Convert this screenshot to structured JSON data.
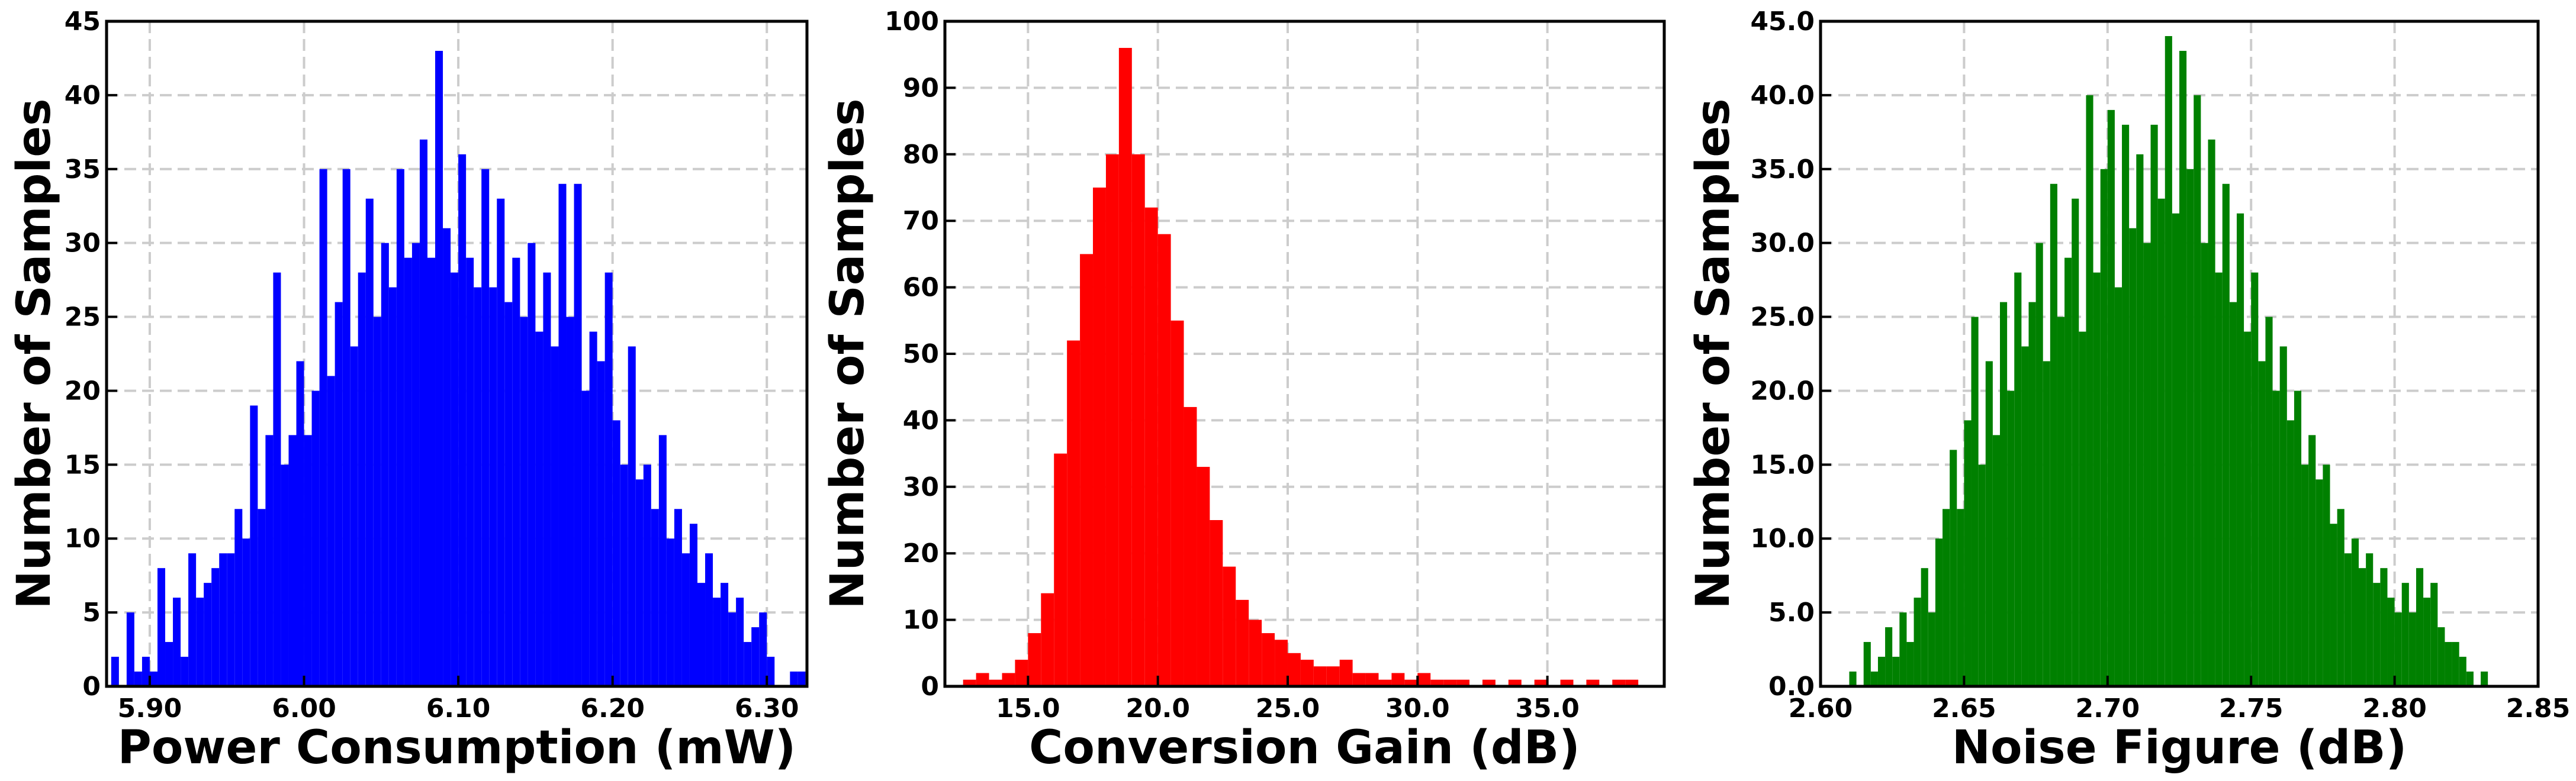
{
  "chart_data": [
    {
      "type": "histogram",
      "xlabel": "Power Consumption (mW)",
      "ylabel": "Number of Samples",
      "color": "#0000ff",
      "grid": true,
      "xlim": [
        5.872,
        6.326
      ],
      "ylim": [
        0,
        45
      ],
      "xticks": [
        {
          "value": 5.9,
          "label": "5.90"
        },
        {
          "value": 6.0,
          "label": "6.00"
        },
        {
          "value": 6.1,
          "label": "6.10"
        },
        {
          "value": 6.2,
          "label": "6.20"
        },
        {
          "value": 6.3,
          "label": "6.30"
        }
      ],
      "yticks": [
        0,
        5,
        10,
        15,
        20,
        25,
        30,
        35,
        40,
        45
      ],
      "bins": [
        5.875,
        5.88,
        5.885,
        5.89,
        5.895,
        5.9,
        5.905,
        5.91,
        5.915,
        5.92,
        5.925,
        5.93,
        5.935,
        5.94,
        5.945,
        5.95,
        5.955,
        5.96,
        5.965,
        5.97,
        5.975,
        5.98,
        5.985,
        5.99,
        5.995,
        6.0,
        6.005,
        6.01,
        6.015,
        6.02,
        6.025,
        6.03,
        6.035,
        6.04,
        6.045,
        6.05,
        6.055,
        6.06,
        6.065,
        6.07,
        6.075,
        6.08,
        6.085,
        6.09,
        6.095,
        6.1,
        6.105,
        6.11,
        6.115,
        6.12,
        6.125,
        6.13,
        6.135,
        6.14,
        6.145,
        6.15,
        6.155,
        6.16,
        6.165,
        6.17,
        6.175,
        6.18,
        6.185,
        6.19,
        6.195,
        6.2,
        6.205,
        6.21,
        6.215,
        6.22,
        6.225,
        6.23,
        6.235,
        6.24,
        6.245,
        6.25,
        6.255,
        6.26,
        6.265,
        6.27,
        6.275,
        6.28,
        6.285,
        6.29,
        6.295,
        6.3,
        6.305,
        6.31,
        6.315,
        6.32,
        6.325
      ],
      "values": [
        2,
        0,
        5,
        1,
        2,
        1,
        8,
        3,
        6,
        2,
        9,
        6,
        7,
        8,
        9,
        9,
        12,
        10,
        19,
        12,
        17,
        28,
        15,
        17,
        22,
        17,
        20,
        35,
        21,
        26,
        35,
        23,
        28,
        33,
        25,
        30,
        27,
        35,
        29,
        30,
        37,
        29,
        43,
        31,
        28,
        36,
        29,
        27,
        35,
        27,
        33,
        26,
        29,
        25,
        30,
        24,
        28,
        23,
        34,
        25,
        34,
        20,
        24,
        22,
        28,
        18,
        15,
        23,
        14,
        15,
        12,
        17,
        10,
        12,
        9,
        11,
        7,
        9,
        6,
        7,
        5,
        6,
        3,
        4,
        5,
        2,
        0,
        0,
        1,
        1
      ]
    },
    {
      "type": "histogram",
      "xlabel": "Conversion Gain (dB)",
      "ylabel": "Number of Samples",
      "color": "#ff0000",
      "grid": true,
      "xlim": [
        11.8,
        39.5
      ],
      "ylim": [
        0,
        100
      ],
      "xticks": [
        {
          "value": 15,
          "label": "15.0"
        },
        {
          "value": 20,
          "label": "20.0"
        },
        {
          "value": 25,
          "label": "25.0"
        },
        {
          "value": 30,
          "label": "30.0"
        },
        {
          "value": 35,
          "label": "35.0"
        }
      ],
      "yticks": [
        0,
        10,
        20,
        30,
        40,
        50,
        60,
        70,
        80,
        90,
        100
      ],
      "bins": [
        12.5,
        13,
        13.5,
        14,
        14.5,
        15,
        15.5,
        16,
        16.5,
        17,
        17.5,
        18,
        18.5,
        19,
        19.5,
        20,
        20.5,
        21,
        21.5,
        22,
        22.5,
        23,
        23.5,
        24,
        24.5,
        25,
        25.5,
        26,
        26.5,
        27,
        27.5,
        28,
        28.5,
        29,
        29.5,
        30,
        30.5,
        31,
        31.5,
        32,
        32.5,
        33,
        33.5,
        34,
        34.5,
        35,
        35.5,
        36,
        36.5,
        37,
        37.5,
        38,
        38.5,
        39
      ],
      "values": [
        1,
        2,
        1,
        2,
        4,
        8,
        14,
        35,
        52,
        65,
        75,
        80,
        96,
        80,
        72,
        68,
        55,
        42,
        33,
        25,
        18,
        13,
        10,
        8,
        7,
        5,
        4,
        3,
        3,
        4,
        2,
        2,
        1,
        2,
        1,
        2,
        1,
        1,
        1,
        0,
        1,
        0,
        1,
        0,
        1,
        0,
        1,
        0,
        1,
        0,
        1,
        1,
        0
      ]
    },
    {
      "type": "histogram",
      "xlabel": "Noise Figure (dB)",
      "ylabel": "Number of Samples",
      "color": "#008000",
      "grid": true,
      "xlim": [
        2.6,
        2.85
      ],
      "ylim": [
        0,
        45
      ],
      "xticks": [
        {
          "value": 2.6,
          "label": "2.60"
        },
        2.65,
        {
          "value": 2.7,
          "label": "2.70"
        },
        2.75,
        {
          "value": 2.8,
          "label": "2.80"
        },
        2.85
      ],
      "yticks": [
        {
          "value": 0,
          "label": "0.0"
        },
        {
          "value": 5,
          "label": "5.0"
        },
        {
          "value": 10,
          "label": "10.0"
        },
        {
          "value": 15,
          "label": "15.0"
        },
        {
          "value": 20,
          "label": "20.0"
        },
        {
          "value": 25,
          "label": "25.0"
        },
        {
          "value": 30,
          "label": "30.0"
        },
        {
          "value": 35,
          "label": "35.0"
        },
        {
          "value": 40,
          "label": "40.0"
        },
        {
          "value": 45,
          "label": "45.0"
        }
      ],
      "bins": [
        2.61,
        2.6125,
        2.615,
        2.6175,
        2.62,
        2.6225,
        2.625,
        2.6275,
        2.63,
        2.6325,
        2.635,
        2.6375,
        2.64,
        2.6425,
        2.645,
        2.6475,
        2.65,
        2.6525,
        2.655,
        2.6575,
        2.66,
        2.6625,
        2.665,
        2.6675,
        2.67,
        2.6725,
        2.675,
        2.6775,
        2.68,
        2.6825,
        2.685,
        2.6875,
        2.69,
        2.6925,
        2.695,
        2.6975,
        2.7,
        2.7025,
        2.705,
        2.7075,
        2.71,
        2.7125,
        2.715,
        2.7175,
        2.72,
        2.7225,
        2.725,
        2.7275,
        2.73,
        2.7325,
        2.735,
        2.7375,
        2.74,
        2.7425,
        2.745,
        2.7475,
        2.75,
        2.7525,
        2.755,
        2.7575,
        2.76,
        2.7625,
        2.765,
        2.7675,
        2.77,
        2.7725,
        2.775,
        2.7775,
        2.78,
        2.7825,
        2.785,
        2.7875,
        2.79,
        2.7925,
        2.795,
        2.7975,
        2.8,
        2.8025,
        2.805,
        2.8075,
        2.81,
        2.8125,
        2.815,
        2.8175,
        2.82,
        2.8225,
        2.825,
        2.8275,
        2.83,
        2.8325,
        2.835
      ],
      "values": [
        1,
        0,
        3,
        1,
        2,
        4,
        2,
        5,
        3,
        6,
        8,
        5,
        10,
        12,
        16,
        12,
        18,
        25,
        15,
        22,
        17,
        26,
        20,
        28,
        23,
        26,
        30,
        22,
        34,
        25,
        29,
        33,
        24,
        40,
        28,
        35,
        39,
        27,
        38,
        31,
        36,
        30,
        38,
        33,
        44,
        32,
        43,
        35,
        40,
        30,
        37,
        28,
        34,
        26,
        32,
        24,
        28,
        22,
        25,
        20,
        23,
        18,
        20,
        15,
        17,
        14,
        15,
        11,
        12,
        9,
        10,
        8,
        9,
        7,
        8,
        6,
        5,
        7,
        5,
        8,
        6,
        7,
        4,
        3,
        3,
        2,
        1,
        0,
        1,
        0
      ]
    }
  ]
}
